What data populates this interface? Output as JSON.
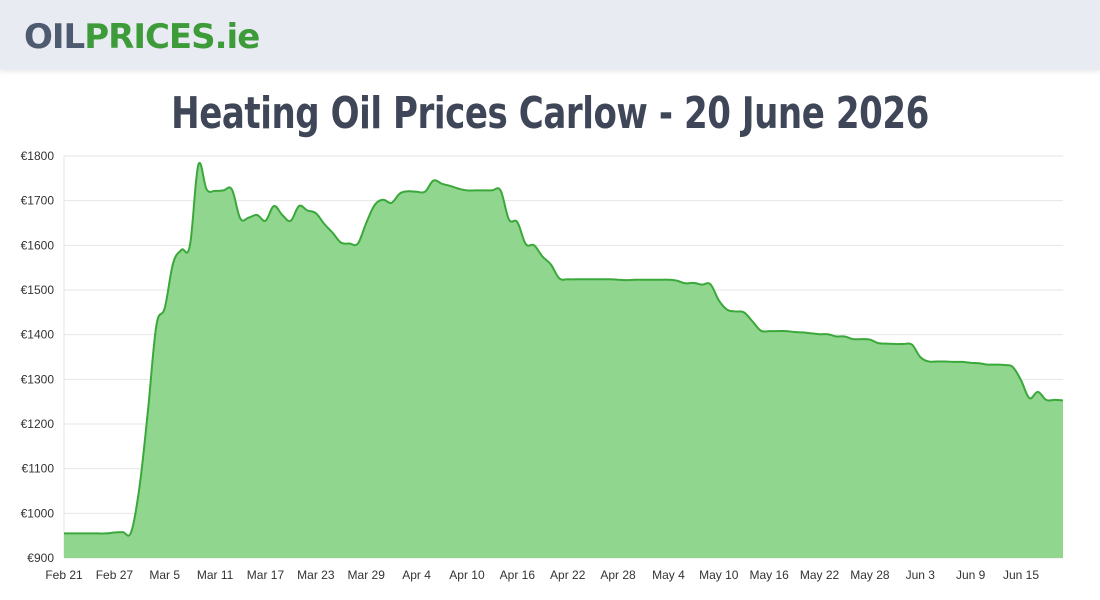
{
  "header": {
    "logo_oil": "OIL",
    "logo_prices": "PRICES",
    "logo_tld": ".ie"
  },
  "page": {
    "title": "Heating Oil Prices Carlow - 20 June 2026"
  },
  "colors": {
    "line": "#3aa83a",
    "fill": "#90d68e",
    "grid": "#e6e6e6",
    "title": "#3e4658"
  },
  "chart_data": {
    "type": "area",
    "title": "Heating Oil Prices Carlow - 20 June 2026",
    "xlabel": "",
    "ylabel": "",
    "ylim": [
      900,
      1800
    ],
    "yticks": [
      900,
      1000,
      1100,
      1200,
      1300,
      1400,
      1500,
      1600,
      1700,
      1800
    ],
    "ytick_labels": [
      "€900",
      "€1000",
      "€1100",
      "€1200",
      "€1300",
      "€1400",
      "€1500",
      "€1600",
      "€1700",
      "€1800"
    ],
    "xlim": [
      "2026-02-21",
      "2026-06-20"
    ],
    "xtick_labels": [
      "Feb 21",
      "Feb 27",
      "Mar 5",
      "Mar 11",
      "Mar 17",
      "Mar 23",
      "Mar 29",
      "Apr 4",
      "Apr 10",
      "Apr 16",
      "Apr 22",
      "Apr 28",
      "May 4",
      "May 10",
      "May 16",
      "May 22",
      "May 28",
      "Jun 3",
      "Jun 9",
      "Jun 15"
    ],
    "xtick_dates": [
      "2026-02-21",
      "2026-02-27",
      "2026-03-05",
      "2026-03-11",
      "2026-03-17",
      "2026-03-23",
      "2026-03-29",
      "2026-04-04",
      "2026-04-10",
      "2026-04-16",
      "2026-04-22",
      "2026-04-28",
      "2026-05-04",
      "2026-05-10",
      "2026-05-16",
      "2026-05-22",
      "2026-05-28",
      "2026-06-03",
      "2026-06-09",
      "2026-06-15"
    ],
    "grid": true,
    "legend": "none",
    "series": [
      {
        "points": [
          [
            "2026-02-21",
            955
          ],
          [
            "2026-02-22",
            955
          ],
          [
            "2026-02-23",
            955
          ],
          [
            "2026-02-24",
            955
          ],
          [
            "2026-02-25",
            955
          ],
          [
            "2026-02-26",
            955
          ],
          [
            "2026-02-27",
            957
          ],
          [
            "2026-02-28",
            958
          ],
          [
            "2026-03-01",
            958
          ],
          [
            "2026-03-02",
            1060
          ],
          [
            "2026-03-03",
            1230
          ],
          [
            "2026-03-04",
            1420
          ],
          [
            "2026-03-05",
            1460
          ],
          [
            "2026-03-06",
            1560
          ],
          [
            "2026-03-07",
            1590
          ],
          [
            "2026-03-08",
            1600
          ],
          [
            "2026-03-09",
            1780
          ],
          [
            "2026-03-10",
            1725
          ],
          [
            "2026-03-11",
            1722
          ],
          [
            "2026-03-12",
            1723
          ],
          [
            "2026-03-13",
            1725
          ],
          [
            "2026-03-14",
            1660
          ],
          [
            "2026-03-15",
            1662
          ],
          [
            "2026-03-16",
            1668
          ],
          [
            "2026-03-17",
            1655
          ],
          [
            "2026-03-18",
            1688
          ],
          [
            "2026-03-19",
            1668
          ],
          [
            "2026-03-20",
            1655
          ],
          [
            "2026-03-21",
            1688
          ],
          [
            "2026-03-22",
            1678
          ],
          [
            "2026-03-23",
            1672
          ],
          [
            "2026-03-24",
            1648
          ],
          [
            "2026-03-25",
            1628
          ],
          [
            "2026-03-26",
            1606
          ],
          [
            "2026-03-27",
            1604
          ],
          [
            "2026-03-28",
            1604
          ],
          [
            "2026-03-29",
            1650
          ],
          [
            "2026-03-30",
            1690
          ],
          [
            "2026-03-31",
            1702
          ],
          [
            "2026-04-01",
            1695
          ],
          [
            "2026-04-02",
            1716
          ],
          [
            "2026-04-03",
            1721
          ],
          [
            "2026-04-04",
            1720
          ],
          [
            "2026-04-05",
            1720
          ],
          [
            "2026-04-06",
            1745
          ],
          [
            "2026-04-07",
            1738
          ],
          [
            "2026-04-08",
            1733
          ],
          [
            "2026-04-09",
            1727
          ],
          [
            "2026-04-10",
            1723
          ],
          [
            "2026-04-11",
            1723
          ],
          [
            "2026-04-12",
            1723
          ],
          [
            "2026-04-13",
            1723
          ],
          [
            "2026-04-14",
            1723
          ],
          [
            "2026-04-15",
            1658
          ],
          [
            "2026-04-16",
            1652
          ],
          [
            "2026-04-17",
            1603
          ],
          [
            "2026-04-18",
            1600
          ],
          [
            "2026-04-19",
            1575
          ],
          [
            "2026-04-20",
            1557
          ],
          [
            "2026-04-21",
            1526
          ],
          [
            "2026-04-22",
            1524
          ],
          [
            "2026-04-23",
            1524
          ],
          [
            "2026-04-24",
            1524
          ],
          [
            "2026-04-25",
            1524
          ],
          [
            "2026-04-26",
            1524
          ],
          [
            "2026-04-27",
            1524
          ],
          [
            "2026-04-28",
            1523
          ],
          [
            "2026-04-29",
            1522
          ],
          [
            "2026-04-30",
            1523
          ],
          [
            "2026-05-01",
            1523
          ],
          [
            "2026-05-02",
            1523
          ],
          [
            "2026-05-03",
            1523
          ],
          [
            "2026-05-04",
            1523
          ],
          [
            "2026-05-05",
            1521
          ],
          [
            "2026-05-06",
            1515
          ],
          [
            "2026-05-07",
            1516
          ],
          [
            "2026-05-08",
            1512
          ],
          [
            "2026-05-09",
            1513
          ],
          [
            "2026-05-10",
            1477
          ],
          [
            "2026-05-11",
            1456
          ],
          [
            "2026-05-12",
            1452
          ],
          [
            "2026-05-13",
            1450
          ],
          [
            "2026-05-14",
            1430
          ],
          [
            "2026-05-15",
            1409
          ],
          [
            "2026-05-16",
            1408
          ],
          [
            "2026-05-17",
            1408
          ],
          [
            "2026-05-18",
            1408
          ],
          [
            "2026-05-19",
            1406
          ],
          [
            "2026-05-20",
            1405
          ],
          [
            "2026-05-21",
            1403
          ],
          [
            "2026-05-22",
            1401
          ],
          [
            "2026-05-23",
            1401
          ],
          [
            "2026-05-24",
            1396
          ],
          [
            "2026-05-25",
            1396
          ],
          [
            "2026-05-26",
            1390
          ],
          [
            "2026-05-27",
            1390
          ],
          [
            "2026-05-28",
            1389
          ],
          [
            "2026-05-29",
            1381
          ],
          [
            "2026-05-30",
            1380
          ],
          [
            "2026-05-31",
            1379
          ],
          [
            "2026-06-01",
            1379
          ],
          [
            "2026-06-02",
            1378
          ],
          [
            "2026-06-03",
            1350
          ],
          [
            "2026-06-04",
            1340
          ],
          [
            "2026-06-05",
            1340
          ],
          [
            "2026-06-06",
            1340
          ],
          [
            "2026-06-07",
            1339
          ],
          [
            "2026-06-08",
            1339
          ],
          [
            "2026-06-09",
            1337
          ],
          [
            "2026-06-10",
            1336
          ],
          [
            "2026-06-11",
            1333
          ],
          [
            "2026-06-12",
            1333
          ],
          [
            "2026-06-13",
            1332
          ],
          [
            "2026-06-14",
            1328
          ],
          [
            "2026-06-15",
            1298
          ],
          [
            "2026-06-16",
            1258
          ],
          [
            "2026-06-17",
            1272
          ],
          [
            "2026-06-18",
            1254
          ],
          [
            "2026-06-19",
            1254
          ],
          [
            "2026-06-20",
            1253
          ]
        ]
      }
    ]
  }
}
